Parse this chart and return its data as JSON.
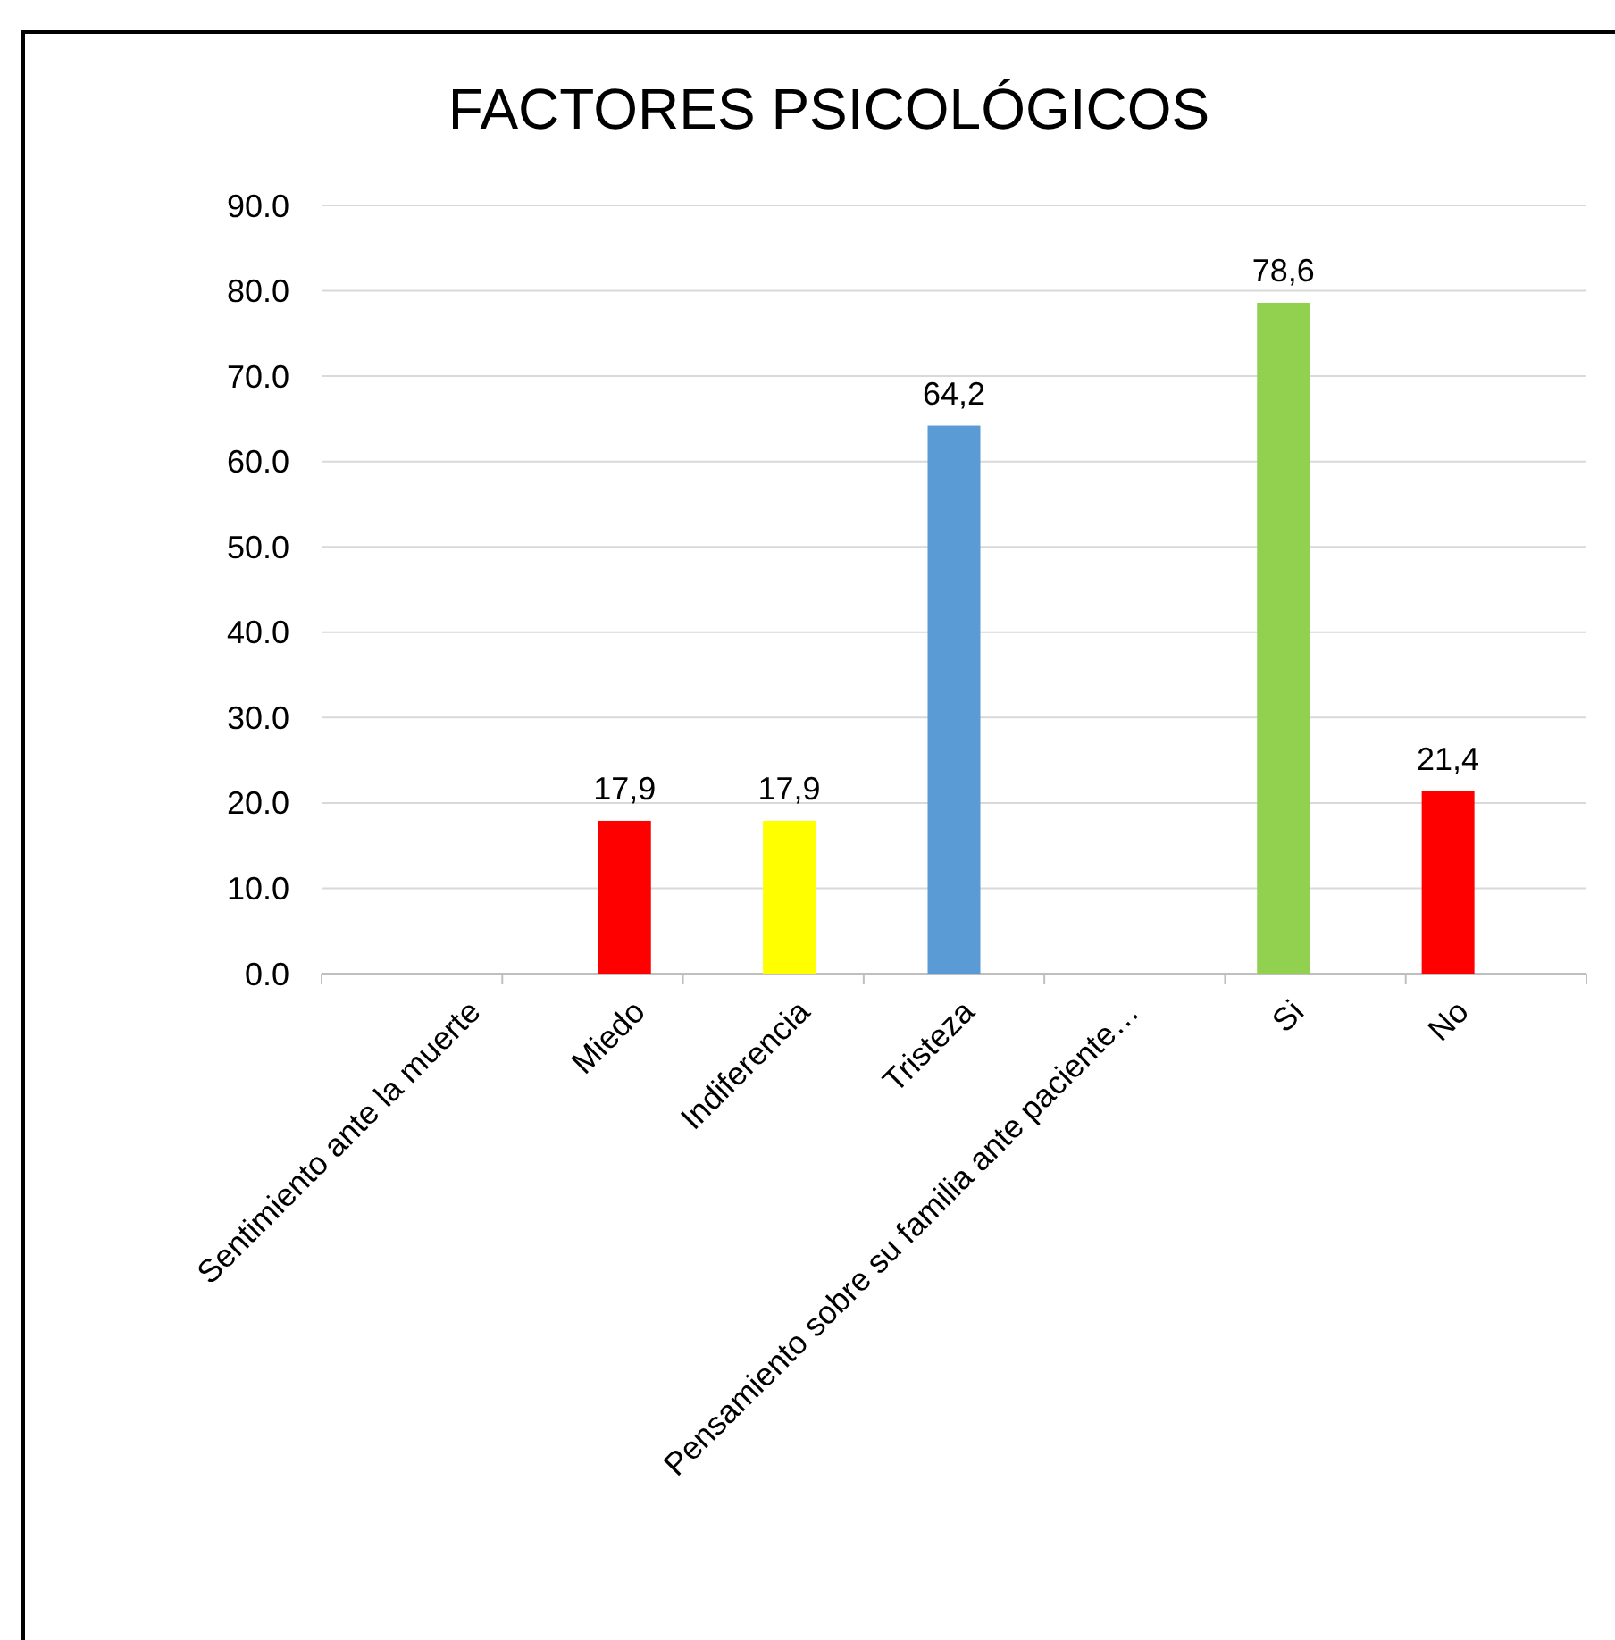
{
  "chart_data": {
    "type": "bar",
    "title": "FACTORES PSICOLÓGICOS",
    "categories": [
      "Sentimiento ante la muerte",
      "Miedo",
      "Indiferencia",
      "Tristeza",
      "Pensamiento sobre su familia ante paciente…",
      "Si",
      "No"
    ],
    "values": [
      null,
      17.9,
      17.9,
      64.2,
      null,
      78.6,
      21.4
    ],
    "colors": [
      null,
      "#ff0000",
      "#ffff00",
      "#5b9bd5",
      null,
      "#92d050",
      "#ff0000"
    ],
    "value_labels": [
      null,
      "17,9",
      "17,9",
      "64,2",
      null,
      "78,6",
      "21,4"
    ],
    "ylim": [
      0,
      90
    ],
    "yticks": [
      {
        "value": 0,
        "label": "0.0"
      },
      {
        "value": 10,
        "label": "10.0"
      },
      {
        "value": 20,
        "label": "20.0"
      },
      {
        "value": 30,
        "label": "30.0"
      },
      {
        "value": 40,
        "label": "40.0"
      },
      {
        "value": 50,
        "label": "50.0"
      },
      {
        "value": 60,
        "label": "60.0"
      },
      {
        "value": 70,
        "label": "70.0"
      },
      {
        "value": 80,
        "label": "80.0"
      },
      {
        "value": 90,
        "label": "90.0"
      }
    ],
    "grid": "y"
  }
}
